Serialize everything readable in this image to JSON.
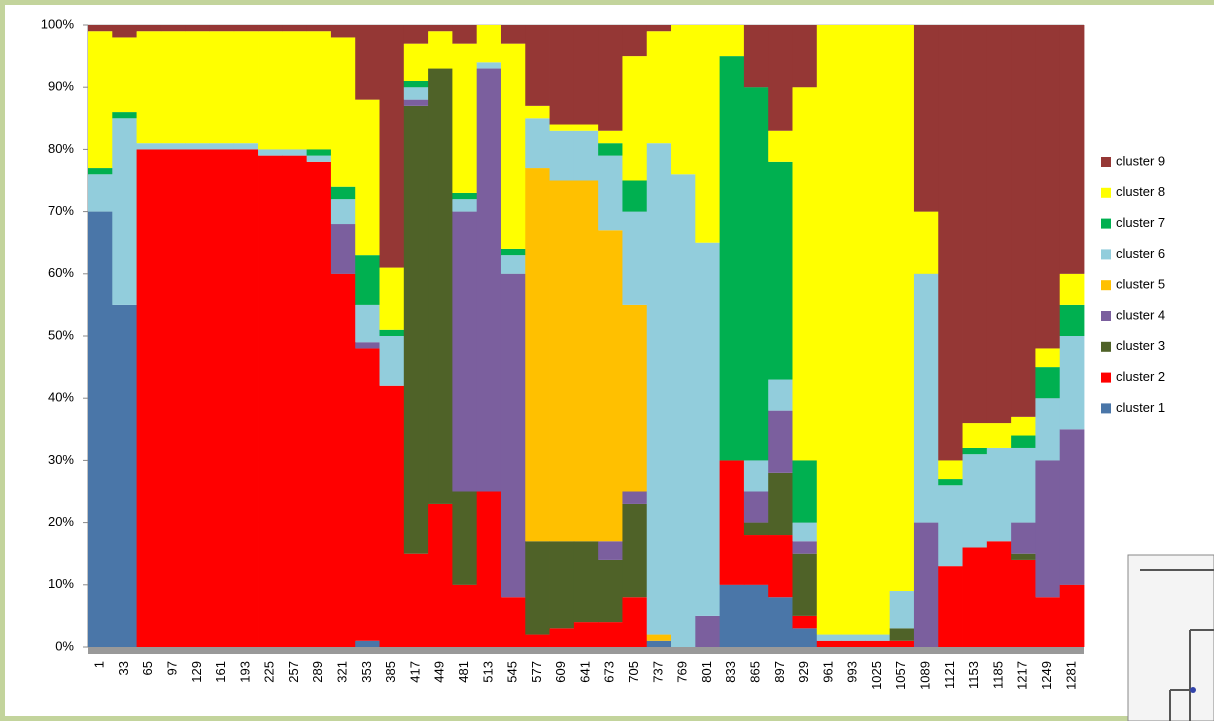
{
  "chart_data": {
    "type": "stacked_bar_100",
    "categories": [
      "1",
      "33",
      "65",
      "97",
      "129",
      "161",
      "193",
      "225",
      "257",
      "289",
      "321",
      "353",
      "385",
      "417",
      "449",
      "481",
      "513",
      "545",
      "577",
      "609",
      "641",
      "673",
      "705",
      "737",
      "769",
      "801",
      "833",
      "865",
      "897",
      "929",
      "961",
      "993",
      "1025",
      "1057",
      "1089",
      "1121",
      "1153",
      "1185",
      "1217",
      "1249",
      "1281"
    ],
    "series": [
      {
        "name": "cluster 1",
        "color": "#4a76a8",
        "values": [
          70,
          55,
          0,
          0,
          0,
          0,
          0,
          0,
          0,
          0,
          0,
          1,
          0,
          0,
          0,
          0,
          0,
          0,
          0,
          0,
          0,
          0,
          0,
          1,
          0,
          0,
          10,
          10,
          8,
          3,
          0,
          0,
          0,
          0,
          0,
          0,
          0,
          0,
          0,
          0,
          0
        ]
      },
      {
        "name": "cluster 2",
        "color": "#ff0000",
        "values": [
          0,
          0,
          80,
          80,
          80,
          80,
          80,
          79,
          79,
          78,
          60,
          47,
          42,
          15,
          23,
          10,
          25,
          8,
          2,
          3,
          4,
          4,
          8,
          0,
          0,
          0,
          20,
          8,
          10,
          2,
          1,
          1,
          1,
          1,
          0,
          13,
          16,
          17,
          14,
          8,
          10
        ]
      },
      {
        "name": "cluster 3",
        "color": "#4f6228",
        "values": [
          0,
          0,
          0,
          0,
          0,
          0,
          0,
          0,
          0,
          0,
          0,
          0,
          0,
          72,
          70,
          15,
          0,
          0,
          15,
          14,
          13,
          10,
          15,
          0,
          0,
          0,
          0,
          2,
          10,
          10,
          0,
          0,
          0,
          2,
          0,
          0,
          0,
          0,
          1,
          0,
          0
        ]
      },
      {
        "name": "cluster 4",
        "color": "#7b5f9e",
        "values": [
          0,
          0,
          0,
          0,
          0,
          0,
          0,
          0,
          0,
          0,
          8,
          1,
          0,
          1,
          0,
          45,
          68,
          52,
          0,
          0,
          0,
          3,
          2,
          0,
          0,
          5,
          0,
          5,
          10,
          2,
          0,
          0,
          0,
          0,
          20,
          0,
          0,
          0,
          5,
          22,
          25
        ]
      },
      {
        "name": "cluster 5",
        "color": "#ffc000",
        "values": [
          0,
          0,
          0,
          0,
          0,
          0,
          0,
          0,
          0,
          0,
          0,
          0,
          0,
          0,
          0,
          0,
          0,
          0,
          60,
          58,
          58,
          50,
          30,
          1,
          0,
          0,
          0,
          0,
          0,
          0,
          0,
          0,
          0,
          0,
          0,
          0,
          0,
          0,
          0,
          0,
          0
        ]
      },
      {
        "name": "cluster 6",
        "color": "#92cddc",
        "values": [
          6,
          30,
          1,
          1,
          1,
          1,
          1,
          1,
          1,
          1,
          4,
          6,
          8,
          2,
          0,
          2,
          1,
          3,
          8,
          8,
          8,
          12,
          15,
          79,
          76,
          60,
          0,
          5,
          5,
          3,
          1,
          1,
          1,
          6,
          40,
          13,
          15,
          15,
          12,
          10,
          15
        ]
      },
      {
        "name": "cluster 7",
        "color": "#00b050",
        "values": [
          1,
          1,
          0,
          0,
          0,
          0,
          0,
          0,
          0,
          1,
          2,
          8,
          1,
          1,
          0,
          1,
          0,
          1,
          0,
          0,
          0,
          2,
          5,
          0,
          0,
          0,
          65,
          60,
          35,
          10,
          0,
          0,
          0,
          0,
          0,
          1,
          1,
          0,
          2,
          5,
          5
        ]
      },
      {
        "name": "cluster 8",
        "color": "#ffff00",
        "values": [
          22,
          12,
          18,
          18,
          18,
          18,
          18,
          19,
          19,
          19,
          24,
          25,
          10,
          6,
          6,
          24,
          6,
          33,
          2,
          1,
          1,
          2,
          20,
          18,
          24,
          35,
          5,
          0,
          5,
          60,
          98,
          98,
          98,
          91,
          10,
          3,
          4,
          4,
          3,
          3,
          5
        ]
      },
      {
        "name": "cluster 9",
        "color": "#953735",
        "values": [
          1,
          2,
          1,
          1,
          1,
          1,
          1,
          1,
          1,
          1,
          2,
          12,
          39,
          3,
          1,
          3,
          0,
          3,
          13,
          16,
          16,
          17,
          5,
          1,
          0,
          0,
          0,
          10,
          17,
          10,
          0,
          0,
          0,
          0,
          30,
          70,
          64,
          64,
          63,
          52,
          40
        ]
      }
    ],
    "ylim": [
      0,
      100
    ],
    "yticks": [
      {
        "value": 0,
        "label": "0%"
      },
      {
        "value": 10,
        "label": "10%"
      },
      {
        "value": 20,
        "label": "20%"
      },
      {
        "value": 30,
        "label": "30%"
      },
      {
        "value": 40,
        "label": "40%"
      },
      {
        "value": 50,
        "label": "50%"
      },
      {
        "value": 60,
        "label": "60%"
      },
      {
        "value": 70,
        "label": "70%"
      },
      {
        "value": 80,
        "label": "80%"
      },
      {
        "value": 90,
        "label": "90%"
      },
      {
        "value": 100,
        "label": "100%"
      }
    ],
    "grid": true,
    "legend": "right"
  }
}
